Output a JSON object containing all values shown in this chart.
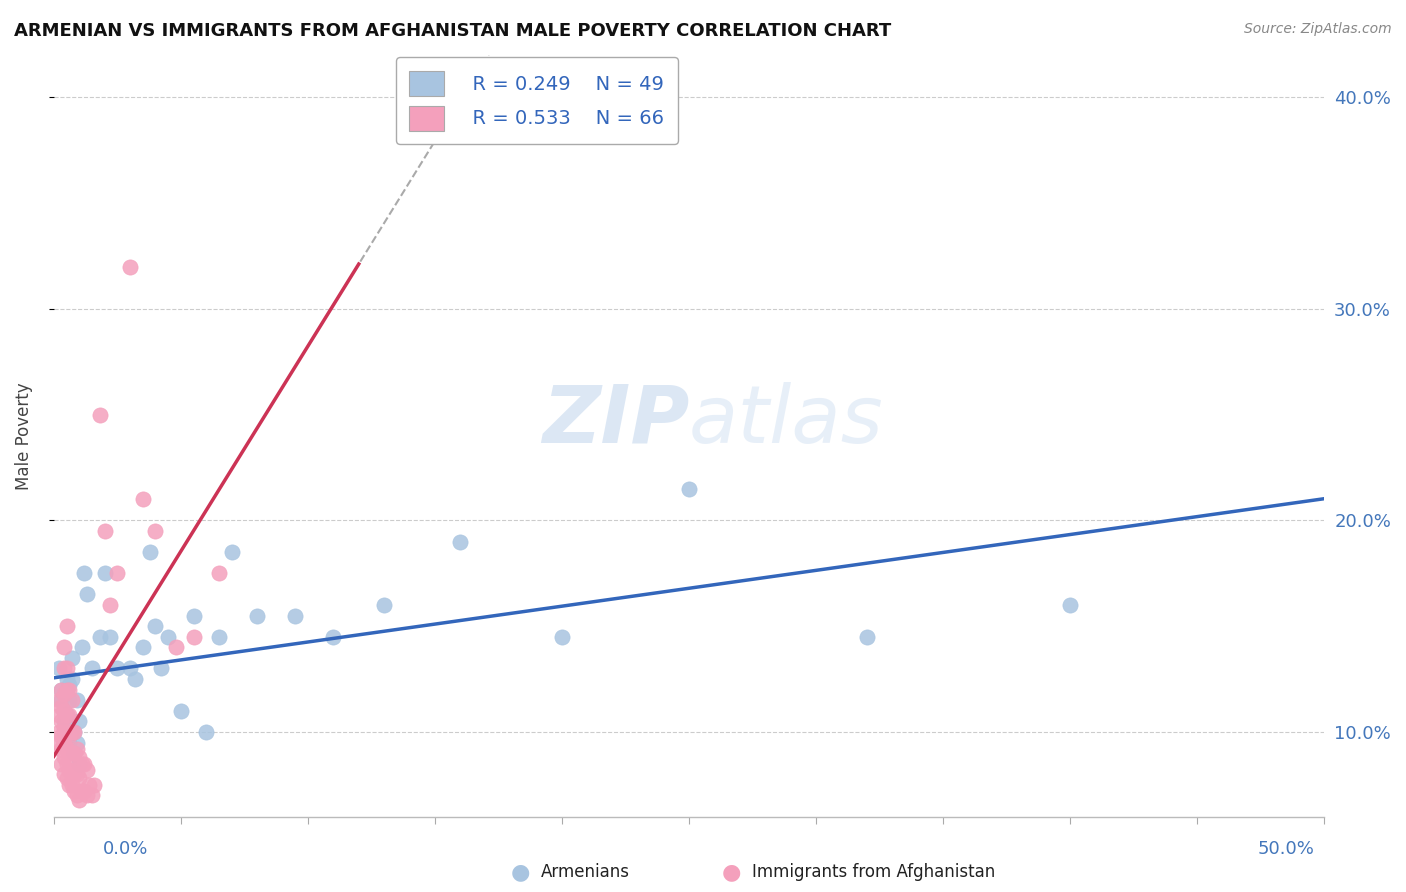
{
  "title": "ARMENIAN VS IMMIGRANTS FROM AFGHANISTAN MALE POVERTY CORRELATION CHART",
  "source": "Source: ZipAtlas.com",
  "legend_armenians": "Armenians",
  "legend_afghanistan": "Immigrants from Afghanistan",
  "r_armenians": "R = 0.249",
  "n_armenians": "N = 49",
  "r_afghanistan": "R = 0.533",
  "n_afghanistan": "N = 66",
  "armenian_color": "#a8c4e0",
  "afghanistan_color": "#f4a0bc",
  "armenian_line_color": "#3366bb",
  "afghanistan_line_color": "#cc3355",
  "background_color": "#ffffff",
  "watermark_color": "#c5d8ee",
  "xlim": [
    0.0,
    0.5
  ],
  "ylim": [
    0.06,
    0.42
  ],
  "armenian_scatter_x": [
    0.002,
    0.003,
    0.003,
    0.004,
    0.004,
    0.004,
    0.005,
    0.005,
    0.005,
    0.006,
    0.006,
    0.006,
    0.007,
    0.007,
    0.008,
    0.008,
    0.009,
    0.009,
    0.01,
    0.01,
    0.011,
    0.012,
    0.013,
    0.015,
    0.018,
    0.02,
    0.022,
    0.025,
    0.03,
    0.032,
    0.035,
    0.038,
    0.04,
    0.042,
    0.045,
    0.05,
    0.055,
    0.06,
    0.065,
    0.07,
    0.08,
    0.095,
    0.11,
    0.13,
    0.16,
    0.2,
    0.25,
    0.32,
    0.4
  ],
  "armenian_scatter_y": [
    0.13,
    0.12,
    0.115,
    0.11,
    0.105,
    0.1,
    0.125,
    0.118,
    0.108,
    0.115,
    0.122,
    0.095,
    0.125,
    0.135,
    0.09,
    0.1,
    0.095,
    0.115,
    0.085,
    0.105,
    0.14,
    0.175,
    0.165,
    0.13,
    0.145,
    0.175,
    0.145,
    0.13,
    0.13,
    0.125,
    0.14,
    0.185,
    0.15,
    0.13,
    0.145,
    0.11,
    0.155,
    0.1,
    0.145,
    0.185,
    0.155,
    0.155,
    0.145,
    0.16,
    0.19,
    0.145,
    0.215,
    0.145,
    0.16
  ],
  "afghanistan_scatter_x": [
    0.002,
    0.002,
    0.002,
    0.002,
    0.003,
    0.003,
    0.003,
    0.003,
    0.003,
    0.003,
    0.004,
    0.004,
    0.004,
    0.004,
    0.004,
    0.004,
    0.004,
    0.004,
    0.005,
    0.005,
    0.005,
    0.005,
    0.005,
    0.005,
    0.005,
    0.005,
    0.006,
    0.006,
    0.006,
    0.006,
    0.006,
    0.006,
    0.007,
    0.007,
    0.007,
    0.007,
    0.007,
    0.008,
    0.008,
    0.008,
    0.008,
    0.009,
    0.009,
    0.009,
    0.01,
    0.01,
    0.01,
    0.011,
    0.011,
    0.012,
    0.012,
    0.013,
    0.013,
    0.014,
    0.015,
    0.016,
    0.018,
    0.02,
    0.022,
    0.025,
    0.03,
    0.035,
    0.04,
    0.048,
    0.055,
    0.065
  ],
  "afghanistan_scatter_y": [
    0.095,
    0.1,
    0.108,
    0.115,
    0.085,
    0.092,
    0.098,
    0.105,
    0.112,
    0.12,
    0.08,
    0.088,
    0.095,
    0.102,
    0.11,
    0.118,
    0.13,
    0.14,
    0.078,
    0.085,
    0.092,
    0.1,
    0.108,
    0.12,
    0.13,
    0.15,
    0.075,
    0.082,
    0.09,
    0.098,
    0.108,
    0.12,
    0.075,
    0.082,
    0.09,
    0.1,
    0.115,
    0.072,
    0.08,
    0.09,
    0.1,
    0.07,
    0.08,
    0.092,
    0.068,
    0.078,
    0.088,
    0.072,
    0.085,
    0.072,
    0.085,
    0.07,
    0.082,
    0.075,
    0.07,
    0.075,
    0.25,
    0.195,
    0.16,
    0.175,
    0.32,
    0.21,
    0.195,
    0.14,
    0.145,
    0.175
  ]
}
